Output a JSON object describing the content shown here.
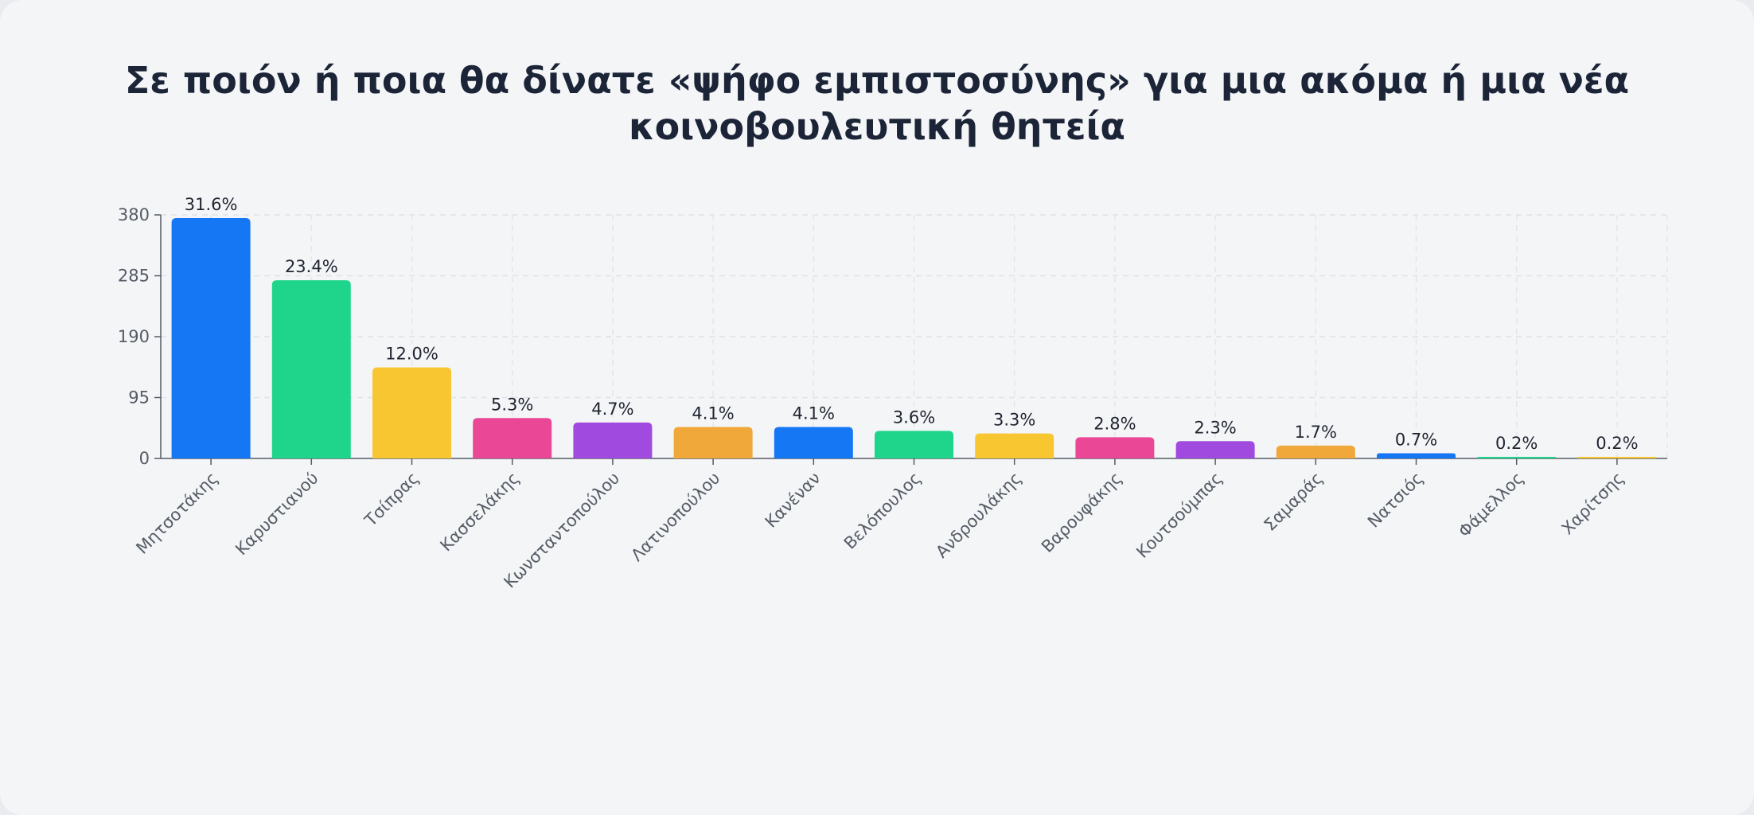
{
  "chart_data": {
    "type": "bar",
    "title": "Σε ποιόν ή ποια θα δίνατε «ψήφο εμπιστοσύνης» για μια ακόμα ή μια νέα κοινοβουλευτική θητεία",
    "xlabel": "",
    "ylabel": "",
    "ylim": [
      0,
      380
    ],
    "yticks": [
      0,
      95,
      190,
      285,
      380
    ],
    "grid": true,
    "categories": [
      "Μητσοτάκης",
      "Καρυστιανού",
      "Τσίπρας",
      "Κασσελάκης",
      "Κωνσταντοπούλου",
      "Λατινοπούλου",
      "Κανέναν",
      "Βελόπουλος",
      "Ανδρουλάκης",
      "Βαρουφάκης",
      "Κουτσούμπας",
      "Σαμαράς",
      "Νατσιός",
      "Φάμελλος",
      "Χαρίτσης"
    ],
    "values": [
      375,
      278,
      142,
      63,
      56,
      49,
      49,
      43,
      39,
      33,
      27,
      20,
      8,
      2,
      2
    ],
    "data_labels": [
      "31.6%",
      "23.4%",
      "12.0%",
      "5.3%",
      "4.7%",
      "4.1%",
      "4.1%",
      "3.6%",
      "3.3%",
      "2.8%",
      "2.3%",
      "1.7%",
      "0.7%",
      "0.2%",
      "0.2%"
    ],
    "colors": [
      "#1677f5",
      "#1fd58b",
      "#f8c631",
      "#ea4896",
      "#a04ae0",
      "#f0a83a",
      "#1677f5",
      "#1fd58b",
      "#f8c631",
      "#ea4896",
      "#a04ae0",
      "#f0a83a",
      "#1677f5",
      "#1fd58b",
      "#f8c631"
    ]
  }
}
